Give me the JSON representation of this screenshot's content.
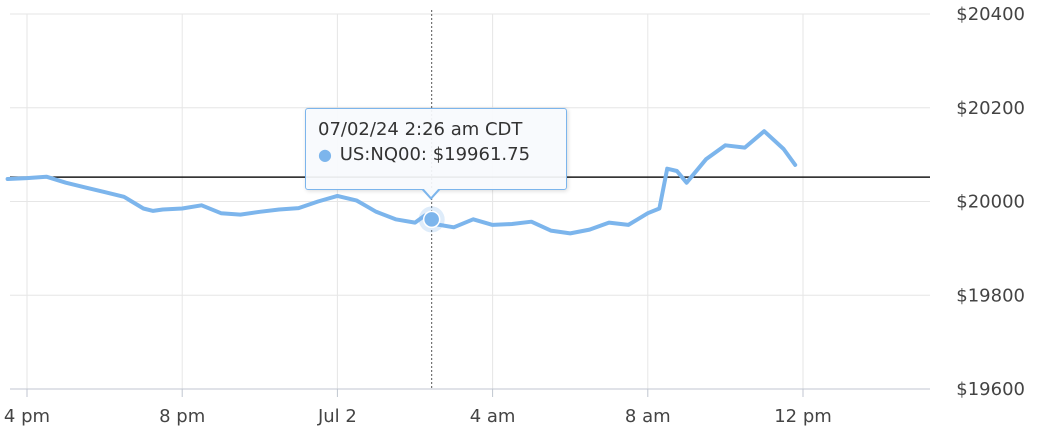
{
  "chart_data": {
    "type": "line",
    "title": "",
    "xlabel": "",
    "ylabel": "",
    "x_unit": "hours from 4 pm",
    "x_range": [
      -1.1,
      22.3
    ],
    "x_ticks": [
      {
        "x": 0,
        "label": "4 pm"
      },
      {
        "x": 4,
        "label": "8 pm"
      },
      {
        "x": 8,
        "label": "Jul 2"
      },
      {
        "x": 12,
        "label": "4 am"
      },
      {
        "x": 16,
        "label": "8 am"
      },
      {
        "x": 20,
        "label": "12 pm"
      }
    ],
    "ylim": [
      19600,
      20400
    ],
    "y_ticks": [
      {
        "y": 20400,
        "label": "$20400"
      },
      {
        "y": 20200,
        "label": "$20200"
      },
      {
        "y": 20000,
        "label": "$20000"
      },
      {
        "y": 19800,
        "label": "$19800"
      },
      {
        "y": 19600,
        "label": "$19600"
      }
    ],
    "grid": true,
    "reference_line": 20052,
    "series": [
      {
        "name": "US:NQ00",
        "color": "#7cb5ec",
        "x": [
          -0.5,
          0.0,
          0.5,
          1.0,
          1.5,
          2.0,
          2.5,
          3.0,
          3.25,
          3.5,
          4.0,
          4.5,
          5.0,
          5.5,
          6.0,
          6.5,
          7.0,
          7.5,
          8.0,
          8.5,
          8.75,
          9.0,
          9.5,
          10.0,
          10.25,
          10.5,
          11.0,
          11.5,
          12.0,
          12.5,
          13.0,
          13.5,
          14.0,
          14.5,
          15.0,
          15.5,
          16.0,
          16.3,
          16.5,
          16.75,
          17.0,
          17.5,
          18.0,
          18.5,
          19.0,
          19.5,
          19.8
        ],
        "values": [
          20048,
          20050,
          20053,
          20040,
          20030,
          20020,
          20010,
          19985,
          19980,
          19983,
          19985,
          19992,
          19975,
          19972,
          19978,
          19983,
          19986,
          20000,
          20012,
          20002,
          19990,
          19978,
          19962,
          19955,
          19970,
          19952,
          19945,
          19962,
          19950,
          19952,
          19957,
          19938,
          19932,
          19940,
          19955,
          19950,
          19975,
          19985,
          20070,
          20065,
          20040,
          20090,
          20120,
          20115,
          20150,
          20112,
          20078
        ]
      }
    ],
    "tooltip": {
      "title": "07/02/24 2:26 am CDT",
      "series_name": "US:NQ00",
      "value_label": "$19961.75",
      "x": 10.43,
      "y": 19961.75
    }
  }
}
